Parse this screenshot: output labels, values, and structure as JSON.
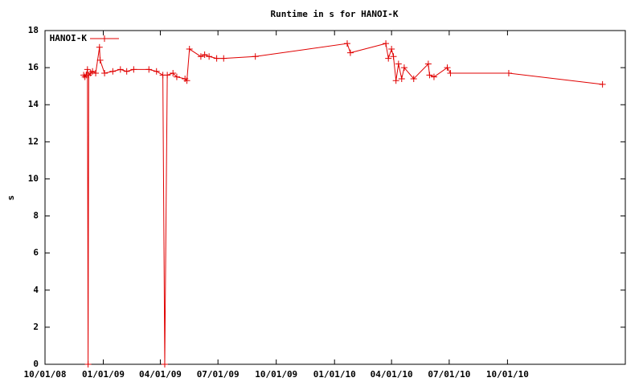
{
  "chart_data": {
    "type": "line",
    "title": "Runtime in s for HANOI-K",
    "y_label": "s",
    "x": [
      "2008-12-01",
      "2008-12-03",
      "2008-12-05",
      "2008-12-07",
      "2008-12-08",
      "2008-12-09",
      "2008-12-12",
      "2008-12-15",
      "2008-12-20",
      "2008-12-26",
      "2008-12-27",
      "2009-01-03",
      "2009-01-16",
      "2009-01-28",
      "2009-02-07",
      "2009-02-18",
      "2009-03-14",
      "2009-03-26",
      "2009-04-05",
      "2009-04-08",
      "2009-04-12",
      "2009-04-21",
      "2009-04-27",
      "2009-05-10",
      "2009-05-13",
      "2009-05-17",
      "2009-06-04",
      "2009-06-10",
      "2009-06-17",
      "2009-06-29",
      "2009-07-10",
      "2009-08-29",
      "2010-01-21",
      "2010-01-26",
      "2010-03-23",
      "2010-03-27",
      "2010-04-01",
      "2010-04-04",
      "2010-04-08",
      "2010-04-12",
      "2010-04-17",
      "2010-04-21",
      "2010-05-06",
      "2010-05-29",
      "2010-05-31",
      "2010-06-07",
      "2010-06-28",
      "2010-07-03",
      "2010-10-03",
      "2011-02-28"
    ],
    "series": [
      {
        "name": "HANOI-K",
        "color": "#e00000",
        "values": [
          15.6,
          15.5,
          15.6,
          15.9,
          0,
          15.6,
          15.7,
          15.8,
          15.7,
          17.1,
          16.4,
          15.7,
          15.8,
          15.9,
          15.8,
          15.9,
          15.9,
          15.8,
          15.6,
          0,
          15.6,
          15.7,
          15.5,
          15.4,
          15.3,
          17.0,
          16.6,
          16.7,
          16.6,
          16.5,
          16.5,
          16.6,
          17.3,
          16.8,
          17.3,
          16.5,
          17.0,
          16.6,
          15.3,
          16.2,
          15.4,
          16.0,
          15.4,
          16.2,
          15.6,
          15.5,
          16.0,
          15.7,
          15.7,
          15.1
        ]
      }
    ],
    "xlim": [
      "2008-10-01",
      "2011-04-05"
    ],
    "xticks": [
      {
        "value": "2008-10-01",
        "label": "10/01/08"
      },
      {
        "value": "2009-01-01",
        "label": "01/01/09"
      },
      {
        "value": "2009-04-01",
        "label": "04/01/09"
      },
      {
        "value": "2009-07-01",
        "label": "07/01/09"
      },
      {
        "value": "2009-10-01",
        "label": "10/01/09"
      },
      {
        "value": "2010-01-01",
        "label": "01/01/10"
      },
      {
        "value": "2010-04-01",
        "label": "04/01/10"
      },
      {
        "value": "2010-07-01",
        "label": "07/01/10"
      },
      {
        "value": "2010-10-01",
        "label": "10/01/10"
      }
    ],
    "ylim": [
      0,
      18
    ],
    "yticks": [
      0,
      2,
      4,
      6,
      8,
      10,
      12,
      14,
      16,
      18
    ],
    "grid": false,
    "legend": "top-left"
  }
}
